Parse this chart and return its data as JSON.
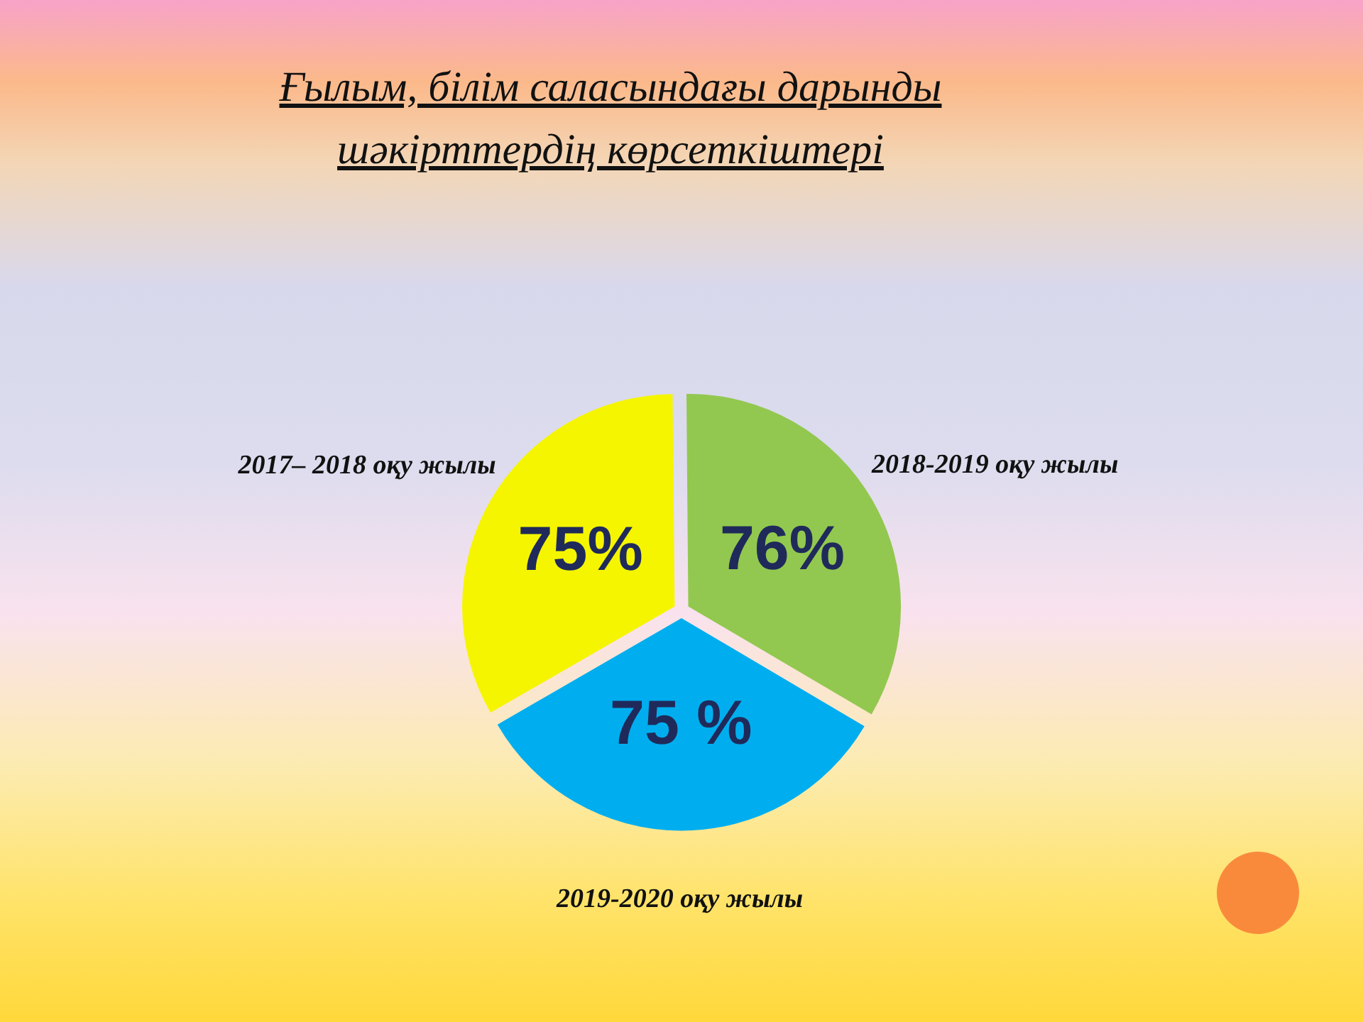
{
  "chart_data": {
    "type": "pie",
    "title": "Ғылым, білім  саласындағы дарынды шәкірттердің көрсеткіштері",
    "categories": [
      "2017– 2018 оқу жылы",
      "2018-2019 оқу жылы",
      "2019-2020 оқу жылы"
    ],
    "values": [
      75,
      76,
      75
    ],
    "colors": [
      "#f5f500",
      "#92c84f",
      "#00aeef"
    ],
    "value_labels": [
      "75%",
      "76%",
      "75 %"
    ]
  }
}
